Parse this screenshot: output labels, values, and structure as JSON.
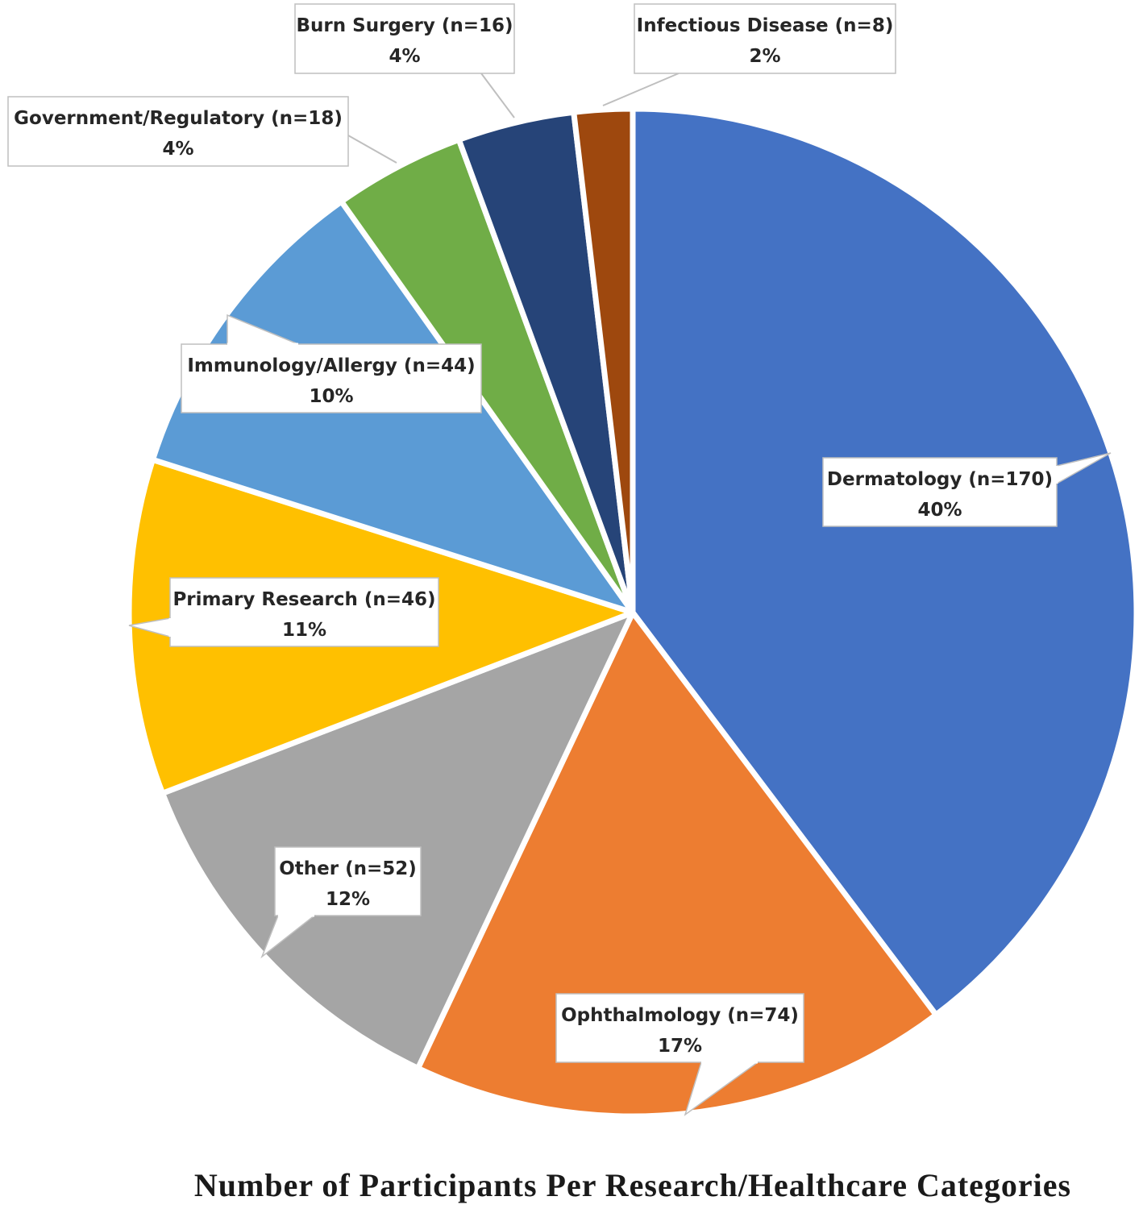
{
  "chart_data": {
    "type": "pie",
    "title": "Number of Participants Per Research/Healthcare Categories",
    "start_angle_deg": 0,
    "direction": "clockwise",
    "slices": [
      {
        "label": "Dermatology (n=170)",
        "value": 170,
        "percent_label": "40%",
        "color": "#4472C4"
      },
      {
        "label": "Ophthalmology (n=74)",
        "value": 74,
        "percent_label": "17%",
        "color": "#ED7D31"
      },
      {
        "label": "Other (n=52)",
        "value": 52,
        "percent_label": "12%",
        "color": "#A5A5A5"
      },
      {
        "label": "Primary Research (n=46)",
        "value": 46,
        "percent_label": "11%",
        "color": "#FFC000"
      },
      {
        "label": "Immunology/Allergy (n=44)",
        "value": 44,
        "percent_label": "10%",
        "color": "#5B9BD5"
      },
      {
        "label": "Government/Regulatory (n=18)",
        "value": 18,
        "percent_label": "4%",
        "color": "#70AD47"
      },
      {
        "label": "Burn Surgery (n=16)",
        "value": 16,
        "percent_label": "4%",
        "color": "#264478"
      },
      {
        "label": "Infectious Disease (n=8)",
        "value": 8,
        "percent_label": "2%",
        "color": "#9E480E"
      }
    ]
  }
}
